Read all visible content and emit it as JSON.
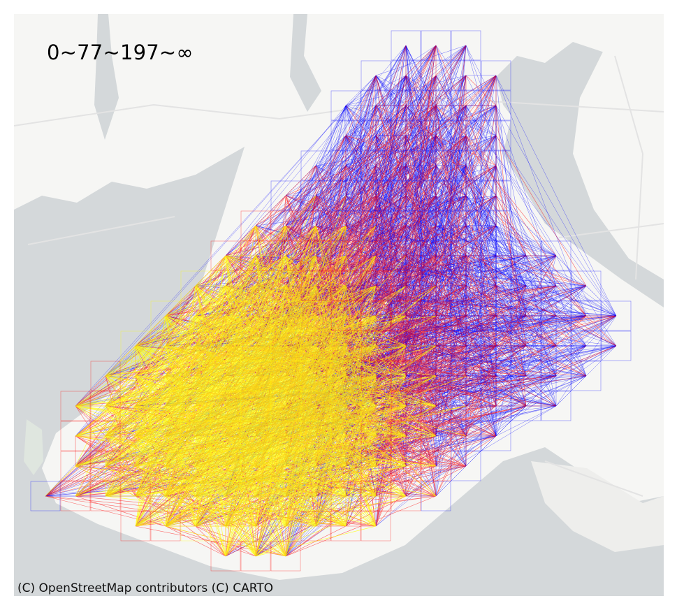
{
  "map": {
    "legend_label": "0~77~197~∞",
    "attribution": "(C) OpenStreetMap contributors (C) CARTO",
    "basemap": {
      "water_color": "#d4d8da",
      "land_color": "#f6f6f4",
      "road_color": "#e2e2e2"
    },
    "flow_colors": {
      "low": "#0000ff",
      "mid": "#ff0000",
      "high": "#ffff00"
    },
    "classes": [
      "0~77",
      "77~197",
      "197~∞"
    ]
  }
}
